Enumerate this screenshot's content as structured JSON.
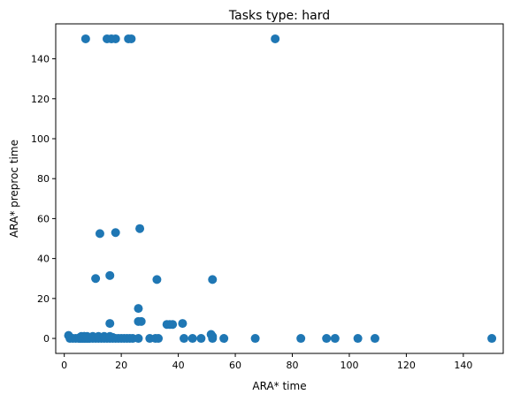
{
  "chart_data": {
    "type": "scatter",
    "title": "Tasks type: hard",
    "xlabel": "ARA* time",
    "ylabel": "ARA* preproc time",
    "xlim": [
      -3,
      154
    ],
    "ylim": [
      -7.5,
      157.5
    ],
    "xticks": [
      0,
      20,
      40,
      60,
      80,
      100,
      120,
      140
    ],
    "yticks": [
      0,
      20,
      40,
      60,
      80,
      100,
      120,
      140
    ],
    "grid": false,
    "marker_color": "#1f77b4",
    "series": [
      {
        "x": [
          1.5,
          2,
          3,
          4,
          5,
          5.5,
          6,
          6.5,
          7,
          7.5,
          8,
          8.5,
          9,
          10,
          11,
          12,
          13,
          14,
          15,
          16,
          17,
          18,
          19,
          20,
          21,
          22,
          23,
          24,
          26,
          30,
          32,
          33,
          42,
          45,
          48,
          52,
          56,
          67,
          83,
          92,
          95,
          103,
          109,
          150,
          5.5,
          6.5,
          7,
          8,
          9,
          10,
          11,
          12,
          12.5,
          13,
          14,
          15,
          16,
          17,
          6,
          7,
          8,
          10,
          12,
          14,
          16,
          16,
          26,
          36,
          37,
          38,
          41.5,
          26,
          27,
          51.5,
          52,
          11,
          16,
          32.5,
          52,
          12.5,
          18,
          26.5,
          7.5,
          15,
          16.5,
          18,
          22.5,
          23.5,
          74
        ],
        "y": [
          1.5,
          0,
          0,
          0,
          0,
          0,
          0,
          0,
          0,
          0,
          0,
          0,
          0,
          0,
          0,
          0,
          0,
          0,
          0,
          0,
          0,
          0,
          0,
          0,
          0,
          0,
          0,
          0,
          0,
          0,
          0,
          0,
          0,
          0,
          0,
          0,
          0,
          0,
          0,
          0,
          0,
          0,
          0,
          0,
          0.5,
          0.5,
          1,
          0.5,
          0.5,
          0.5,
          0.5,
          0.5,
          0.5,
          0.5,
          0.5,
          0.5,
          0.5,
          0.5,
          1,
          1,
          1,
          1,
          1,
          1,
          1,
          7.5,
          8.5,
          7,
          7,
          7,
          7.5,
          15,
          8.5,
          2,
          1,
          30,
          31.5,
          29.5,
          29.5,
          52.5,
          53,
          55,
          150,
          150,
          150,
          150,
          150,
          150,
          150
        ]
      }
    ]
  }
}
